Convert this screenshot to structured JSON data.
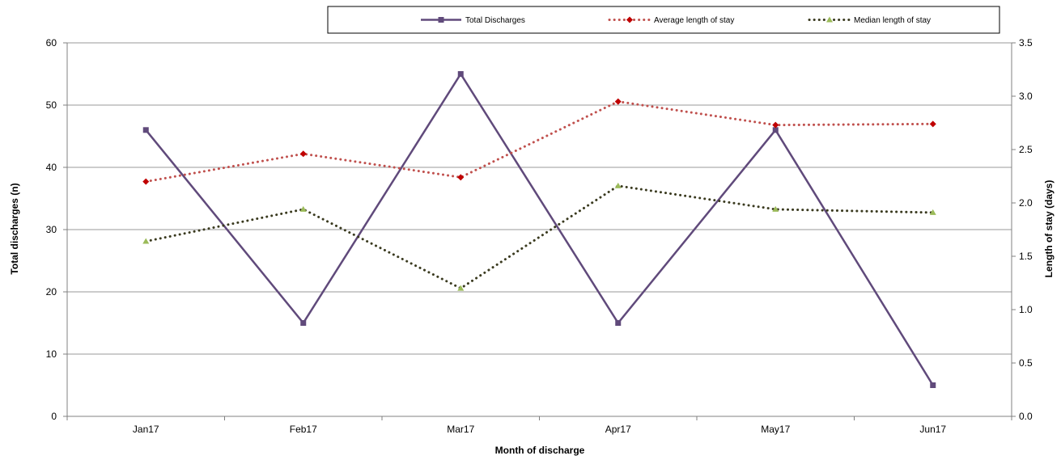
{
  "chart_data": {
    "type": "line",
    "categories": [
      "Jan17",
      "Feb17",
      "Mar17",
      "Apr17",
      "May17",
      "Jun17"
    ],
    "xlabel": "Month of discharge",
    "ylabel": "Total discharges  (n)",
    "y2label": "Length of stay (days)",
    "ylim": [
      0,
      60
    ],
    "y2lim": [
      0,
      3.5
    ],
    "yticks": [
      "0",
      "10",
      "20",
      "30",
      "40",
      "50",
      "60"
    ],
    "y2ticks": [
      "0.0",
      "0.5",
      "1.0",
      "1.5",
      "2.0",
      "2.5",
      "3.0",
      "3.5"
    ],
    "grid": true,
    "legend_position": "top",
    "series": [
      {
        "name": "Total Discharges",
        "axis": "left",
        "values": [
          46,
          15,
          55,
          15,
          46,
          5
        ],
        "color": "#604a7b",
        "marker": "square",
        "line_style": "solid"
      },
      {
        "name": "Average length of stay",
        "axis": "right",
        "values": [
          2.2,
          2.46,
          2.24,
          2.95,
          2.73,
          2.74
        ],
        "color": "#c0504d",
        "marker_color": "#c00000",
        "marker": "diamond",
        "line_style": "dotted"
      },
      {
        "name": "Median length of stay",
        "axis": "right",
        "values": [
          1.64,
          1.94,
          1.2,
          2.16,
          1.94,
          1.91
        ],
        "color": "#3a3a1f",
        "marker_color": "#9bbb59",
        "marker": "triangle",
        "line_style": "dotted"
      }
    ]
  }
}
